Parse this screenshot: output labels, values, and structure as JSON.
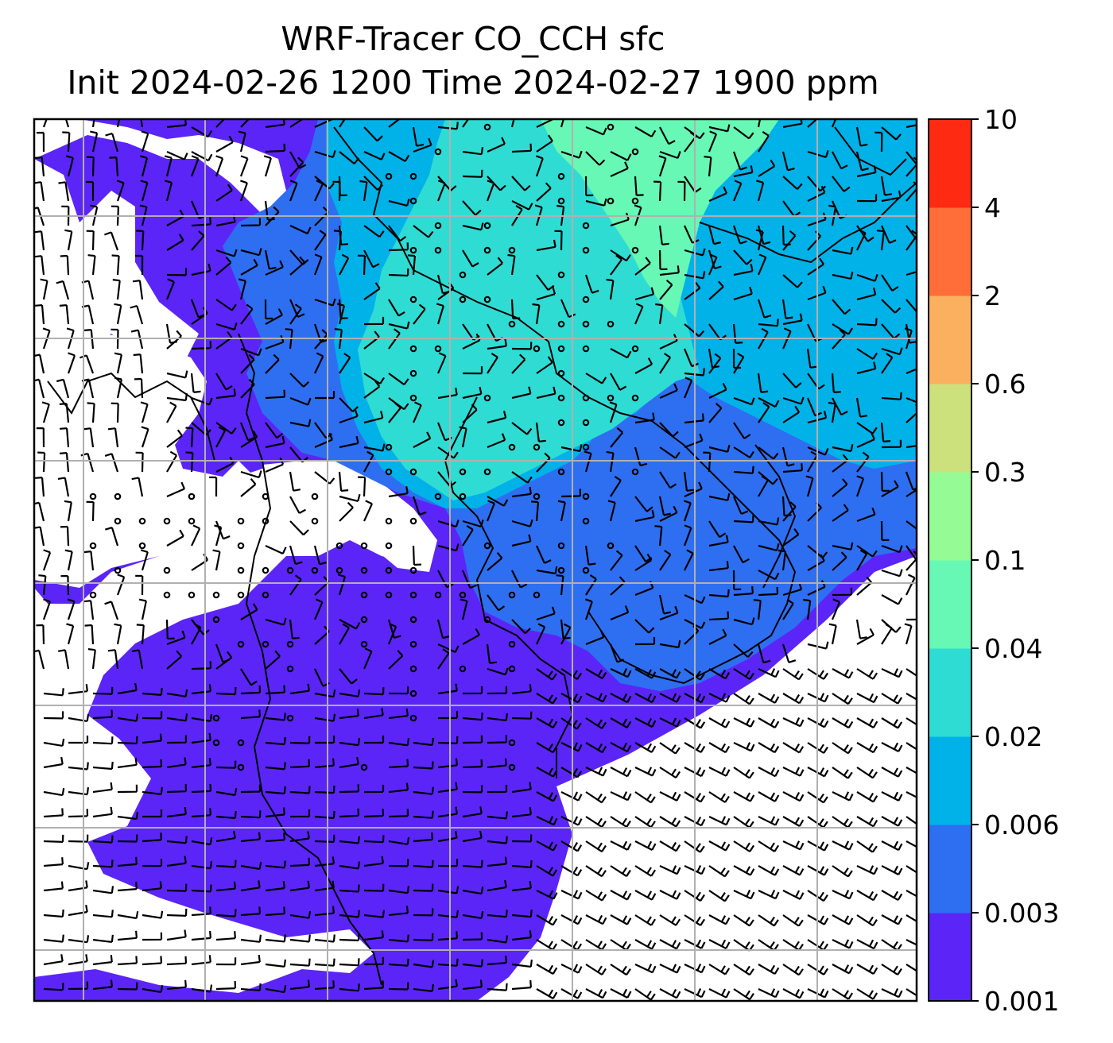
{
  "title": {
    "line1": "WRF-Tracer CO_CCH sfc",
    "line2": "Init 2024-02-26 1200 Time 2024-02-27 1900 ppm"
  },
  "colorbar": {
    "levels": [
      "0.001",
      "0.003",
      "0.006",
      "0.02",
      "0.04",
      "0.1",
      "0.3",
      "0.6",
      "2",
      "4",
      "10"
    ],
    "colors": [
      "#5b25f7",
      "#2e6ff1",
      "#01b2e9",
      "#2fdcd4",
      "#67f8b5",
      "#95fb94",
      "#cce17c",
      "#fbb05f",
      "#ff6e39",
      "#ff2a12"
    ]
  },
  "map": {
    "field": "CO_CCH",
    "level": "sfc",
    "units": "ppm",
    "overlays": [
      "filled-contours",
      "wind-barbs",
      "coastlines",
      "gridlines"
    ]
  }
}
